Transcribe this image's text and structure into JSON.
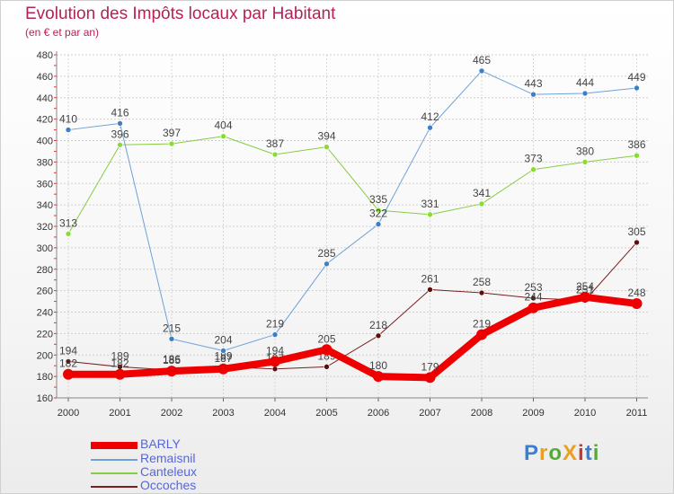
{
  "title": "Evolution des Impôts locaux par Habitant",
  "subtitle": "(en € et par an)",
  "logo": {
    "text": "ProXiti",
    "colors": [
      "#3a7fd1",
      "#e8a020",
      "#55aa33",
      "#e8a020",
      "#cc3333",
      "#3a7fd1",
      "#55aa33"
    ]
  },
  "chart_data": {
    "type": "line",
    "title": "Evolution des Impôts locaux par Habitant",
    "subtitle": "(en € et par an)",
    "xlabel": "",
    "ylabel": "",
    "x": [
      "2000",
      "2001",
      "2002",
      "2003",
      "2004",
      "2005",
      "2006",
      "2007",
      "2008",
      "2009",
      "2010",
      "2011"
    ],
    "ylim": [
      160,
      480
    ],
    "yticks": [
      160,
      180,
      200,
      220,
      240,
      260,
      280,
      300,
      320,
      340,
      360,
      380,
      400,
      420,
      440,
      460,
      480
    ],
    "grid": true,
    "legend_position": "bottom-left",
    "series": [
      {
        "name": "Occoches",
        "color": "#7a1f1f",
        "marker": "#5a1010",
        "width": 1,
        "labeled": true,
        "values": [
          194,
          189,
          186,
          189,
          187,
          189,
          218,
          261,
          258,
          253,
          251,
          305
        ]
      },
      {
        "name": "Canteleux",
        "color": "#88cc44",
        "marker": "#88dd33",
        "width": 1,
        "labeled": true,
        "values": [
          313,
          396,
          397,
          404,
          387,
          394,
          335,
          331,
          341,
          373,
          380,
          386
        ]
      },
      {
        "name": "Remaisnil",
        "color": "#6fa0d8",
        "marker": "#3a7fc8",
        "width": 1,
        "labeled": true,
        "values": [
          410,
          416,
          215,
          204,
          219,
          285,
          322,
          412,
          465,
          443,
          444,
          449
        ]
      },
      {
        "name": "BARLY",
        "color": "#ee0000",
        "marker": "#ee0000",
        "width": 8,
        "labeled": true,
        "values": [
          182,
          182,
          185,
          187,
          194,
          205,
          180,
          179,
          219,
          244,
          254,
          248
        ]
      }
    ],
    "legend": [
      "BARLY",
      "Remaisnil",
      "Canteleux",
      "Occoches"
    ]
  }
}
